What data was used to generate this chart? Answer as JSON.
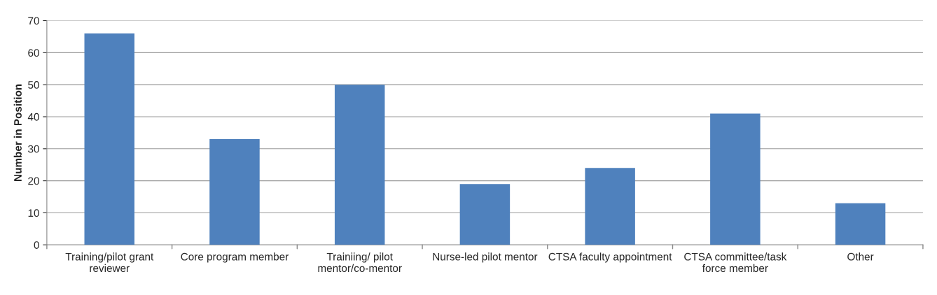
{
  "chart_data": {
    "type": "bar",
    "ylabel": "Number in Position",
    "categories": [
      "Training/pilot grant\nreviewer",
      "Core program member",
      "Trainiing/ pilot\nmentor/co-mentor",
      "Nurse-led pilot mentor",
      "CTSA faculty appointment",
      "CTSA committee/task\nforce member",
      "Other"
    ],
    "values": [
      66,
      33,
      50,
      19,
      24,
      41,
      13
    ],
    "color": "#4f81bd",
    "ylim": [
      0,
      70
    ],
    "yticks": [
      0,
      10,
      20,
      30,
      40,
      50,
      60,
      70
    ],
    "grid": "y"
  }
}
